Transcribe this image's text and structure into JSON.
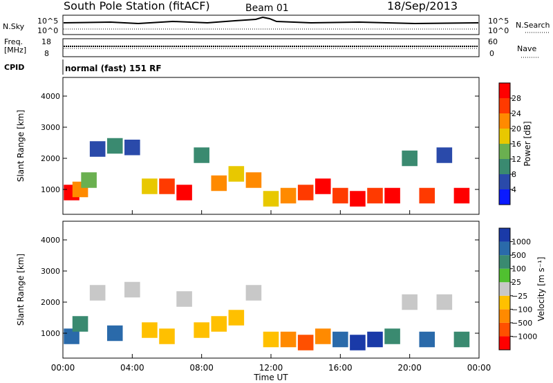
{
  "header": {
    "station": "South Pole Station (fitACF)",
    "beam": "Beam 01",
    "date": "18/Sep/2013"
  },
  "strips": {
    "nsky": {
      "label": "N.Sky",
      "ticks": [
        "10^5",
        "10^0"
      ],
      "right_label": "N.Search",
      "right_ticks": [
        "10^5",
        "10^0"
      ]
    },
    "freq": {
      "label_line1": "Freq.",
      "label_line2": "[MHz]",
      "ticks": [
        "18",
        "8"
      ],
      "right_label": "Nave",
      "right_ticks": [
        "60",
        "0"
      ]
    },
    "cpid": {
      "label": "CPID",
      "text": "normal (fast) 151 RF"
    }
  },
  "axes": {
    "x_label": "Time UT",
    "x_ticks": [
      "00:00",
      "04:00",
      "08:00",
      "12:00",
      "16:00",
      "20:00",
      "00:00"
    ],
    "y_label": "Slant Range [km]",
    "y_ticks": [
      "1000",
      "2000",
      "3000",
      "4000"
    ]
  },
  "power_scale": {
    "label": "Power [dB]",
    "ticks": [
      "4",
      "8",
      "12",
      "16",
      "20",
      "24",
      "28"
    ],
    "colors": [
      "#0a1aff",
      "#2a4aaa",
      "#3a8a70",
      "#6ab050",
      "#e8c800",
      "#ff8a00",
      "#ff3a00",
      "#ff0000"
    ]
  },
  "velocity_scale": {
    "label": "Velocity [m s⁻¹]",
    "ticks": [
      "1000",
      "500",
      "100",
      "25",
      "−25",
      "−100",
      "−500",
      "−1000"
    ],
    "colors": [
      "#1a3aa8",
      "#2a6aaa",
      "#3a8a70",
      "#50c030",
      "#c8c8c8",
      "#ffc000",
      "#ff8a00",
      "#ff5000",
      "#ff0000"
    ]
  },
  "chart_data": [
    {
      "type": "heatmap",
      "panel": "power",
      "x_unit": "hour UT",
      "xlim": [
        0,
        24
      ],
      "ylim": [
        200,
        4600
      ],
      "cells": [
        {
          "t": 0.5,
          "r": 900,
          "v": 28
        },
        {
          "t": 1.0,
          "r": 1000,
          "v": 20
        },
        {
          "t": 1.5,
          "r": 1300,
          "v": 12
        },
        {
          "t": 2.0,
          "r": 2300,
          "v": 6
        },
        {
          "t": 3.0,
          "r": 2400,
          "v": 8
        },
        {
          "t": 4.0,
          "r": 2350,
          "v": 6
        },
        {
          "t": 5.0,
          "r": 1100,
          "v": 16
        },
        {
          "t": 6.0,
          "r": 1100,
          "v": 24
        },
        {
          "t": 7.0,
          "r": 900,
          "v": 28
        },
        {
          "t": 8.0,
          "r": 2100,
          "v": 8
        },
        {
          "t": 9.0,
          "r": 1200,
          "v": 20
        },
        {
          "t": 10.0,
          "r": 1500,
          "v": 16
        },
        {
          "t": 11.0,
          "r": 1300,
          "v": 20
        },
        {
          "t": 12.0,
          "r": 700,
          "v": 16
        },
        {
          "t": 13.0,
          "r": 800,
          "v": 20
        },
        {
          "t": 14.0,
          "r": 900,
          "v": 24
        },
        {
          "t": 15.0,
          "r": 1100,
          "v": 28
        },
        {
          "t": 16.0,
          "r": 800,
          "v": 24
        },
        {
          "t": 17.0,
          "r": 700,
          "v": 28
        },
        {
          "t": 18.0,
          "r": 800,
          "v": 24
        },
        {
          "t": 19.0,
          "r": 800,
          "v": 28
        },
        {
          "t": 20.0,
          "r": 2000,
          "v": 8
        },
        {
          "t": 21.0,
          "r": 800,
          "v": 24
        },
        {
          "t": 22.0,
          "r": 2100,
          "v": 6
        },
        {
          "t": 23.0,
          "r": 800,
          "v": 28
        }
      ]
    },
    {
      "type": "heatmap",
      "panel": "velocity",
      "x_unit": "hour UT",
      "xlim": [
        0,
        24
      ],
      "ylim": [
        200,
        4600
      ],
      "cells": [
        {
          "t": 0.5,
          "r": 900,
          "v": 500
        },
        {
          "t": 1.0,
          "r": 1300,
          "v": 100
        },
        {
          "t": 2.0,
          "r": 2300,
          "v": 0
        },
        {
          "t": 3.0,
          "r": 1000,
          "v": 500
        },
        {
          "t": 4.0,
          "r": 2400,
          "v": 0
        },
        {
          "t": 5.0,
          "r": 1100,
          "v": -100
        },
        {
          "t": 6.0,
          "r": 900,
          "v": -100
        },
        {
          "t": 7.0,
          "r": 2100,
          "v": 0
        },
        {
          "t": 8.0,
          "r": 1100,
          "v": -100
        },
        {
          "t": 9.0,
          "r": 1300,
          "v": -100
        },
        {
          "t": 10.0,
          "r": 1500,
          "v": -100
        },
        {
          "t": 11.0,
          "r": 2300,
          "v": 0
        },
        {
          "t": 12.0,
          "r": 800,
          "v": -100
        },
        {
          "t": 13.0,
          "r": 800,
          "v": -500
        },
        {
          "t": 14.0,
          "r": 700,
          "v": -1000
        },
        {
          "t": 15.0,
          "r": 900,
          "v": -500
        },
        {
          "t": 16.0,
          "r": 800,
          "v": 500
        },
        {
          "t": 17.0,
          "r": 700,
          "v": 1000
        },
        {
          "t": 18.0,
          "r": 800,
          "v": 1000
        },
        {
          "t": 19.0,
          "r": 900,
          "v": 100
        },
        {
          "t": 20.0,
          "r": 2000,
          "v": 0
        },
        {
          "t": 21.0,
          "r": 800,
          "v": 500
        },
        {
          "t": 22.0,
          "r": 2000,
          "v": 0
        },
        {
          "t": 23.0,
          "r": 800,
          "v": 100
        }
      ]
    }
  ]
}
